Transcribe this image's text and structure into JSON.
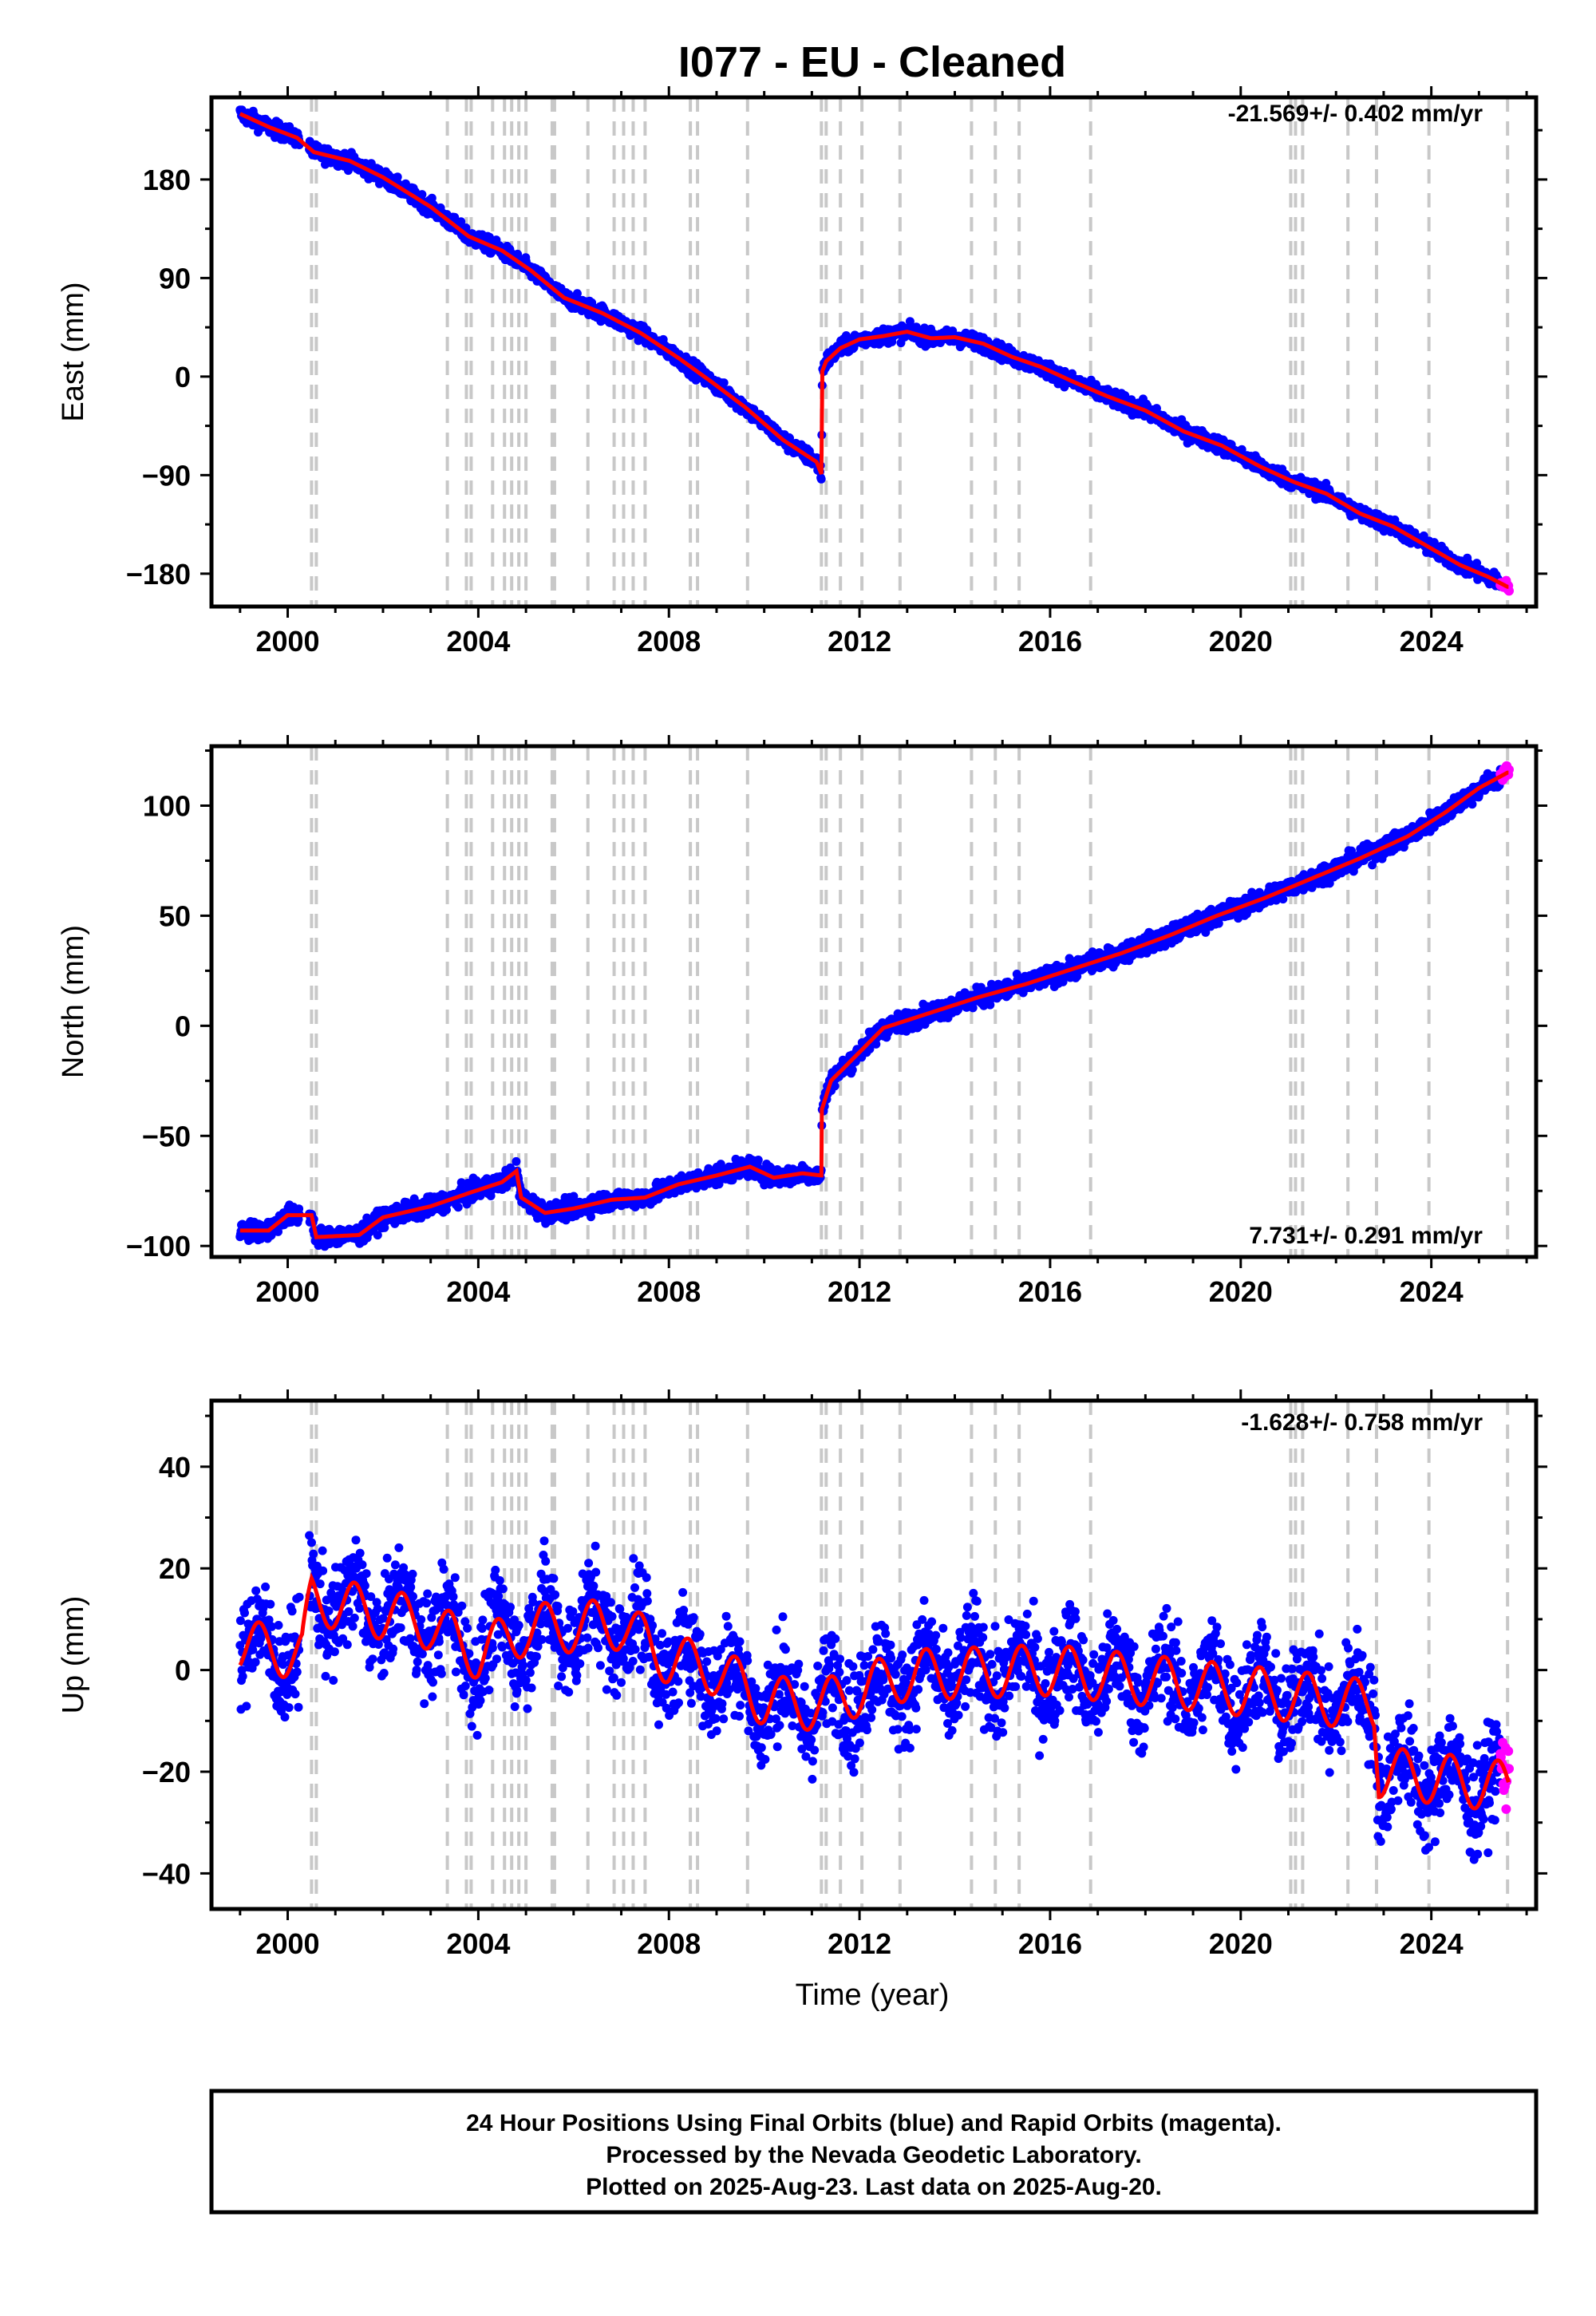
{
  "title": "I077  - EU - Cleaned",
  "xlabel": "Time (year)",
  "footer": [
    "24 Hour Positions Using Final Orbits (blue) and Rapid Orbits (magenta).",
    "Processed by the Nevada Geodetic Laboratory.",
    "Plotted on 2025-Aug-23. Last data on 2025-Aug-20."
  ],
  "colors": {
    "final_orbits": "#0000ff",
    "rapid_orbits": "#ff00ff",
    "model": "#ff0000",
    "equipment_change": "#c8c8c8"
  },
  "chart_data": [
    {
      "type": "scatter",
      "panel": "East",
      "ylabel": "East (mm)",
      "rate_label": "-21.569+/- 0.402 mm/yr",
      "xlim": [
        1998.4,
        2026.2
      ],
      "ylim": [
        -210,
        255
      ],
      "xticks": [
        2000,
        2004,
        2008,
        2012,
        2016,
        2020,
        2024
      ],
      "yticks": [
        -180,
        -90,
        0,
        90,
        180
      ],
      "ytick_labels": [
        "−180",
        "−90",
        "0",
        "90",
        "180"
      ],
      "model_points": [
        [
          1999.0,
          240
        ],
        [
          1999.6,
          228
        ],
        [
          2000.2,
          218
        ],
        [
          2000.55,
          205
        ],
        [
          2001.3,
          197
        ],
        [
          2002.0,
          182
        ],
        [
          2003.0,
          155
        ],
        [
          2003.8,
          128
        ],
        [
          2004.5,
          115
        ],
        [
          2005.1,
          97
        ],
        [
          2005.8,
          72
        ],
        [
          2006.6,
          58
        ],
        [
          2007.4,
          40
        ],
        [
          2008.2,
          17
        ],
        [
          2008.9,
          -5
        ],
        [
          2009.6,
          -28
        ],
        [
          2010.4,
          -58
        ],
        [
          2011.1,
          -78
        ],
        [
          2011.2,
          -89
        ],
        [
          2011.22,
          5
        ],
        [
          2011.3,
          14
        ],
        [
          2011.6,
          26
        ],
        [
          2012.0,
          34
        ],
        [
          2012.5,
          37
        ],
        [
          2013.0,
          41
        ],
        [
          2013.5,
          35
        ],
        [
          2014.0,
          36
        ],
        [
          2014.6,
          30
        ],
        [
          2015.2,
          18
        ],
        [
          2015.8,
          9
        ],
        [
          2016.5,
          -5
        ],
        [
          2017.2,
          -18
        ],
        [
          2018.0,
          -31
        ],
        [
          2018.8,
          -50
        ],
        [
          2019.6,
          -63
        ],
        [
          2020.4,
          -82
        ],
        [
          2021.1,
          -96
        ],
        [
          2021.8,
          -107
        ],
        [
          2022.5,
          -125
        ],
        [
          2023.2,
          -137
        ],
        [
          2024.0,
          -157
        ],
        [
          2024.6,
          -172
        ],
        [
          2025.2,
          -183
        ],
        [
          2025.6,
          -192
        ]
      ],
      "final_orbit_scatter_mm": 5,
      "rapid_orbit_range": [
        2025.45,
        2025.64
      ]
    },
    {
      "type": "scatter",
      "panel": "North",
      "ylabel": "North (mm)",
      "rate_label": "7.731+/- 0.291 mm/yr",
      "xlim": [
        1998.4,
        2026.2
      ],
      "ylim": [
        -105,
        127
      ],
      "xticks": [
        2000,
        2004,
        2008,
        2012,
        2016,
        2020,
        2024
      ],
      "yticks": [
        -100,
        -50,
        0,
        50,
        100
      ],
      "ytick_labels": [
        "−100",
        "−50",
        "0",
        "50",
        "100"
      ],
      "model_points": [
        [
          1999.0,
          -93
        ],
        [
          1999.6,
          -93
        ],
        [
          2000.0,
          -86
        ],
        [
          2000.5,
          -86
        ],
        [
          2000.6,
          -96
        ],
        [
          2001.5,
          -95
        ],
        [
          2002.0,
          -87
        ],
        [
          2003.0,
          -82
        ],
        [
          2003.8,
          -76
        ],
        [
          2004.5,
          -71
        ],
        [
          2004.8,
          -66
        ],
        [
          2004.9,
          -78
        ],
        [
          2005.4,
          -85
        ],
        [
          2006.0,
          -83
        ],
        [
          2006.8,
          -79
        ],
        [
          2007.5,
          -78
        ],
        [
          2008.2,
          -72
        ],
        [
          2009.0,
          -68
        ],
        [
          2009.7,
          -64
        ],
        [
          2010.2,
          -69
        ],
        [
          2010.8,
          -67
        ],
        [
          2011.2,
          -68
        ],
        [
          2011.21,
          -38
        ],
        [
          2011.4,
          -25
        ],
        [
          2012.0,
          -12
        ],
        [
          2012.5,
          -1
        ],
        [
          2013.5,
          6
        ],
        [
          2014.5,
          13
        ],
        [
          2015.5,
          19
        ],
        [
          2016.5,
          26
        ],
        [
          2017.5,
          33
        ],
        [
          2018.5,
          41
        ],
        [
          2019.5,
          50
        ],
        [
          2020.5,
          58
        ],
        [
          2021.5,
          67
        ],
        [
          2022.5,
          76
        ],
        [
          2023.5,
          86
        ],
        [
          2024.3,
          97
        ],
        [
          2025.0,
          108
        ],
        [
          2025.6,
          115
        ]
      ],
      "final_orbit_scatter_mm": 3,
      "rapid_orbit_range": [
        2025.45,
        2025.64
      ]
    },
    {
      "type": "scatter",
      "panel": "Up",
      "ylabel": "Up (mm)",
      "rate_label": "-1.628+/- 0.758 mm/yr",
      "xlim": [
        1998.4,
        2026.2
      ],
      "ylim": [
        -47,
        53
      ],
      "xticks": [
        2000,
        2004,
        2008,
        2012,
        2016,
        2020,
        2024
      ],
      "yticks": [
        -40,
        -20,
        0,
        20,
        40
      ],
      "ytick_labels": [
        "−40",
        "−20",
        "0",
        "20",
        "40"
      ],
      "model_offset_points": [
        [
          1999.0,
          5
        ],
        [
          2000.3,
          3
        ],
        [
          2000.5,
          14
        ],
        [
          2003.0,
          9
        ],
        [
          2004.0,
          3
        ],
        [
          2005.0,
          8
        ],
        [
          2007.0,
          9
        ],
        [
          2008.0,
          2
        ],
        [
          2009.0,
          0
        ],
        [
          2010.0,
          -6
        ],
        [
          2011.2,
          -7
        ],
        [
          2012.0,
          -4
        ],
        [
          2013.0,
          -1
        ],
        [
          2016.0,
          0
        ],
        [
          2020.0,
          -4
        ],
        [
          2022.8,
          -7
        ],
        [
          2022.9,
          -20
        ],
        [
          2025.6,
          -23
        ]
      ],
      "model_amplitude_mm": 5,
      "final_orbit_scatter_mm": 7,
      "rapid_orbit_range": [
        2025.45,
        2025.64
      ]
    }
  ],
  "equipment_changes": [
    2000.5,
    2000.6,
    2003.35,
    2003.75,
    2003.85,
    2004.3,
    2004.55,
    2004.7,
    2004.85,
    2005.0,
    2005.55,
    2005.6,
    2006.3,
    2006.85,
    2007.05,
    2007.25,
    2007.5,
    2008.45,
    2008.6,
    2009.65,
    2011.2,
    2011.3,
    2011.6,
    2012.05,
    2012.85,
    2014.35,
    2014.85,
    2015.35,
    2016.85,
    2021.05,
    2021.15,
    2021.3,
    2022.25,
    2022.85,
    2023.95,
    2025.6
  ]
}
